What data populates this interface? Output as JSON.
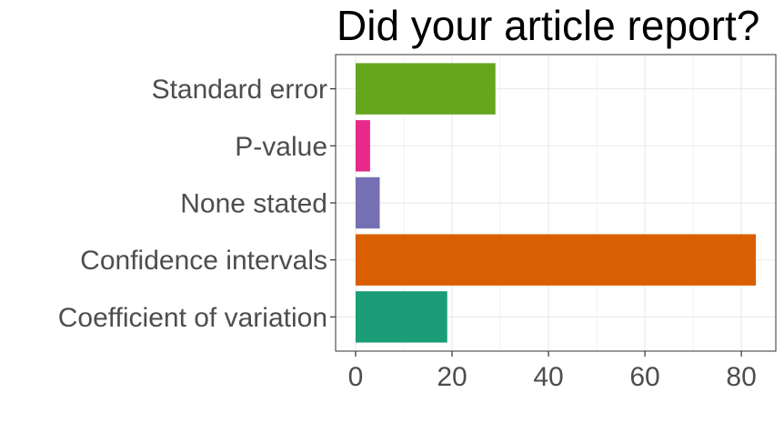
{
  "chart_data": {
    "type": "bar",
    "orientation": "horizontal",
    "title": "Did your article report?",
    "xlabel": "",
    "ylabel": "",
    "categories": [
      "Coefficient of variation",
      "Confidence intervals",
      "None stated",
      "P-value",
      "Standard error"
    ],
    "values": [
      19,
      83,
      5,
      3,
      29
    ],
    "colors": [
      "#1b9e77",
      "#d95f02",
      "#7570b3",
      "#e7298a",
      "#66a61e"
    ],
    "xlim": [
      -4.15,
      87.15
    ],
    "xticks": [
      0,
      20,
      40,
      60,
      80
    ],
    "grid": true,
    "legend": "none"
  }
}
